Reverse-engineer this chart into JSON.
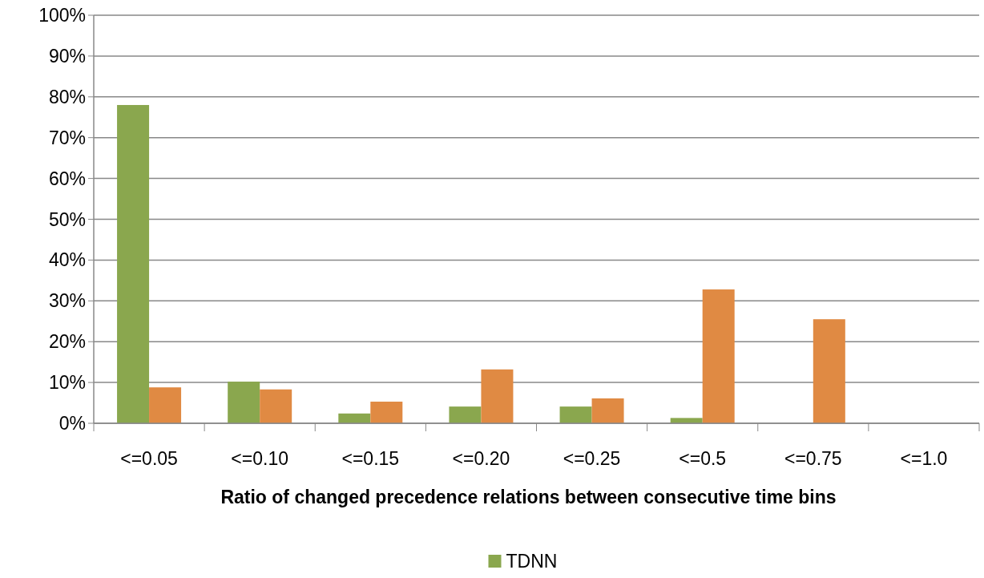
{
  "chart_data": {
    "type": "bar",
    "xlabel": "Ratio of changed precedence relations between consecutive time bins",
    "categories": [
      "<=0.05",
      "<=0.10",
      "<=0.15",
      "<=0.20",
      "<=0.25",
      "<=0.5",
      "<=0.75",
      "<=1.0"
    ],
    "series": [
      {
        "name": "TDNN",
        "color": "#8aa74e",
        "values": [
          78,
          10.2,
          2.4,
          4.1,
          4.1,
          1.3,
          0,
          0
        ]
      },
      {
        "color": "#e08a43",
        "values": [
          8.8,
          8.3,
          5.3,
          13.2,
          6.1,
          32.8,
          25.5,
          0
        ]
      }
    ],
    "ylim": [
      0,
      100
    ],
    "yticks": [
      {
        "value": 0,
        "label": "0%"
      },
      {
        "value": 10,
        "label": "10%"
      },
      {
        "value": 20,
        "label": "20%"
      },
      {
        "value": 30,
        "label": "30%"
      },
      {
        "value": 40,
        "label": "40%"
      },
      {
        "value": 50,
        "label": "50%"
      },
      {
        "value": 60,
        "label": "60%"
      },
      {
        "value": 70,
        "label": "70%"
      },
      {
        "value": 80,
        "label": "80%"
      },
      {
        "value": 90,
        "label": "90%"
      },
      {
        "value": 100,
        "label": "100%"
      }
    ],
    "grid": "y",
    "legend": "bottom"
  }
}
